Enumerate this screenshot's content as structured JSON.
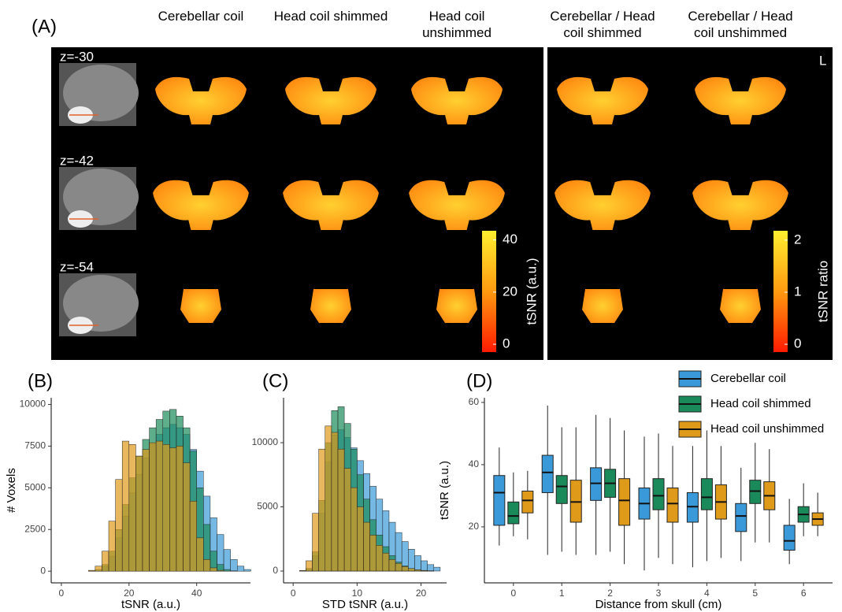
{
  "panel_a": {
    "label": "(A)",
    "columns": [
      "Cerebellar coil",
      "Head coil shimmed",
      "Head coil unshimmed",
      "Cerebellar / Head coil shimmed",
      "Cerebellar / Head coil unshimmed"
    ],
    "rows": [
      "z=-30",
      "z=-42",
      "z=-54"
    ],
    "orientation": "L",
    "colorbars": [
      {
        "label": "tSNR (a.u.)",
        "lim": [
          -3,
          43.5
        ],
        "ticks": [
          0,
          20,
          40
        ]
      },
      {
        "label": "tSNR ratio",
        "lim": [
          -0.15,
          2.18
        ],
        "ticks": [
          0,
          1,
          2
        ]
      }
    ]
  },
  "chart_data": [
    {
      "type": "histogram",
      "panel_label": "(B)",
      "x_label": "tSNR (a.u.)",
      "y_label": "# Voxels",
      "xlim": [
        -3,
        55.9
      ],
      "xticks": [
        0,
        20,
        40
      ],
      "ylim": [
        -700,
        10400
      ],
      "yticks": [
        0,
        2500,
        5000,
        7500,
        10000
      ],
      "bins": [
        4,
        6,
        8,
        10,
        12,
        14,
        16,
        18,
        20,
        22,
        24,
        26,
        28,
        30,
        32,
        34,
        36,
        38,
        40,
        42,
        44,
        46,
        48,
        50,
        52,
        54,
        56
      ],
      "series": [
        {
          "color": "#3a9ad9",
          "values": [
            0,
            0,
            10,
            80,
            300,
            900,
            2000,
            3300,
            4700,
            5800,
            6800,
            7600,
            8200,
            8600,
            8800,
            8600,
            8200,
            7300,
            6000,
            4500,
            3200,
            2200,
            1300,
            700,
            300,
            100
          ]
        },
        {
          "color": "#1a8a5a",
          "values": [
            0,
            0,
            20,
            100,
            400,
            1200,
            2500,
            4000,
            5600,
            6900,
            7900,
            8600,
            9100,
            9600,
            9700,
            9300,
            8600,
            7200,
            5000,
            2800,
            1200,
            400,
            100,
            20,
            0,
            0
          ]
        },
        {
          "color": "#e09a1a",
          "values": [
            0,
            0,
            50,
            300,
            1200,
            3000,
            5500,
            7800,
            7600,
            6900,
            7300,
            7700,
            7800,
            7600,
            7400,
            7500,
            6500,
            4200,
            2000,
            700,
            200,
            50,
            0,
            0,
            0,
            0
          ]
        }
      ]
    },
    {
      "type": "histogram",
      "panel_label": "(C)",
      "x_label": "STD tSNR (a.u.)",
      "xlim": [
        -1.5,
        24
      ],
      "xticks": [
        0,
        10,
        20
      ],
      "ylim": [
        -920,
        13500
      ],
      "yticks": [
        0,
        5000,
        10000
      ],
      "bins": [
        0,
        1,
        2,
        3,
        4,
        5,
        6,
        7,
        8,
        9,
        10,
        11,
        12,
        13,
        14,
        15,
        16,
        17,
        18,
        19,
        20,
        21,
        22,
        23
      ],
      "series": [
        {
          "color": "#3a9ad9",
          "values": [
            0,
            10,
            150,
            1200,
            4500,
            8500,
            10600,
            11000,
            10400,
            9600,
            8600,
            7600,
            6600,
            5600,
            4700,
            3800,
            3000,
            2300,
            1700,
            1200,
            800,
            500,
            300
          ]
        },
        {
          "color": "#1a8a5a",
          "values": [
            0,
            20,
            200,
            1500,
            5500,
            10000,
            12500,
            12800,
            11500,
            9500,
            7500,
            5600,
            4000,
            2800,
            1900,
            1200,
            700,
            400,
            200,
            100,
            50,
            20,
            0
          ]
        },
        {
          "color": "#e09a1a",
          "values": [
            0,
            50,
            800,
            4500,
            9500,
            11300,
            10800,
            9500,
            8000,
            6500,
            5000,
            3800,
            2800,
            2000,
            1400,
            900,
            600,
            350,
            200,
            100,
            50,
            20,
            0
          ]
        }
      ]
    },
    {
      "type": "box",
      "panel_label": "(D)",
      "x_label": "Distance from skull (cm)",
      "y_label": "tSNR (a.u.)",
      "categories": [
        "0",
        "1",
        "2",
        "3",
        "4",
        "5",
        "6"
      ],
      "ylim": [
        2,
        61.5
      ],
      "yticks": [
        20,
        40,
        60
      ],
      "series": [
        {
          "name": "Cerebellar coil",
          "color": "#3a9ad9",
          "whisker_low": [
            14,
            11,
            11,
            6,
            7,
            9,
            8
          ],
          "q1": [
            20.5,
            31,
            28.5,
            22.5,
            21.5,
            18.5,
            12.5
          ],
          "median": [
            31,
            37.5,
            34,
            27.5,
            26.5,
            23.5,
            15.5
          ],
          "q3": [
            36.5,
            43,
            39,
            32.5,
            31,
            27.5,
            20.5
          ],
          "whisker_high": [
            45.5,
            59,
            56,
            49,
            46,
            39,
            29
          ]
        },
        {
          "name": "Head coil shimmed",
          "color": "#1a8a5a",
          "whisker_low": [
            17,
            12,
            12,
            10,
            9,
            15,
            17
          ],
          "q1": [
            21,
            27.5,
            29.5,
            25.5,
            25.5,
            27.5,
            21.5
          ],
          "median": [
            23.5,
            33,
            34,
            30,
            29.5,
            31.5,
            24
          ],
          "q3": [
            28,
            36.5,
            38.5,
            35.5,
            35.5,
            35,
            26.5
          ],
          "whisker_high": [
            37.5,
            52,
            55,
            50,
            51,
            47,
            34
          ]
        },
        {
          "name": "Head coil unshimmed",
          "color": "#e09a1a",
          "whisker_low": [
            16,
            11,
            8,
            8,
            10,
            15,
            17
          ],
          "q1": [
            24.5,
            21.5,
            20.5,
            21.5,
            22.5,
            25.5,
            20.5
          ],
          "median": [
            28.5,
            28,
            28.5,
            27.5,
            28,
            30,
            22.5
          ],
          "q3": [
            31.5,
            35,
            35.5,
            32.5,
            33.5,
            34.5,
            24.5
          ],
          "whisker_high": [
            38,
            52,
            51,
            46,
            46,
            45,
            31
          ]
        }
      ]
    }
  ]
}
